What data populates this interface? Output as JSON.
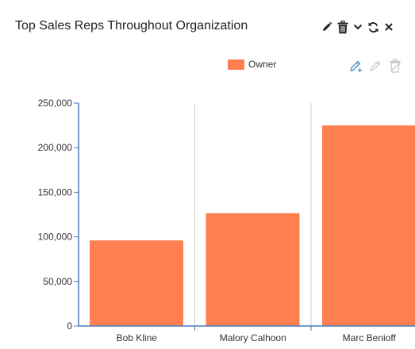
{
  "header": {
    "title": "Top Sales Reps Throughout Organization",
    "icons": [
      "edit-icon",
      "trash-icon",
      "chevron-down-icon",
      "refresh-icon",
      "close-icon"
    ]
  },
  "toolbar": {
    "icons": [
      "edit-add-icon",
      "edit-icon",
      "delete-icon"
    ]
  },
  "colors": {
    "bar": "#ff7f50",
    "axis": "#4a7ab8",
    "grid": "#cccccc"
  },
  "chart_data": {
    "type": "bar",
    "categories": [
      "Bob Kline",
      "Malory Calhoon",
      "Marc Benioff"
    ],
    "series": [
      {
        "name": "Owner",
        "values": [
          96000,
          126500,
          225000
        ]
      }
    ],
    "ylim": [
      0,
      250000
    ],
    "yticks": [
      "250,000",
      "200,000",
      "150,000",
      "100,000",
      "50,000",
      "0"
    ],
    "grid": true,
    "legend": "top"
  }
}
